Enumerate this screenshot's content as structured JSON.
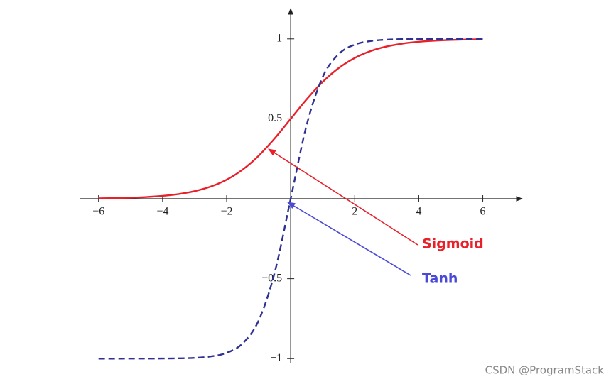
{
  "chart_data": {
    "type": "line",
    "x": [
      -6,
      -5.5,
      -5,
      -4.5,
      -4,
      -3.5,
      -3,
      -2.5,
      -2,
      -1.5,
      -1,
      -0.5,
      0,
      0.5,
      1,
      1.5,
      2,
      2.5,
      3,
      3.5,
      4,
      4.5,
      5,
      5.5,
      6
    ],
    "series": [
      {
        "name": "Sigmoid",
        "color": "#e8202a",
        "label_color": "#e8202a",
        "dashed": false,
        "values": [
          0.0025,
          0.0041,
          0.0067,
          0.011,
          0.018,
          0.0293,
          0.0474,
          0.0759,
          0.1192,
          0.1824,
          0.2689,
          0.3775,
          0.5,
          0.6225,
          0.7311,
          0.8176,
          0.8808,
          0.9241,
          0.9526,
          0.9707,
          0.982,
          0.989,
          0.9933,
          0.9959,
          0.9975
        ]
      },
      {
        "name": "Tanh",
        "color": "#2e3192",
        "label_color": "#4a4ad6",
        "dashed": true,
        "values": [
          -1.0,
          -1.0,
          -0.9999,
          -0.9998,
          -0.9993,
          -0.9982,
          -0.9951,
          -0.9866,
          -0.964,
          -0.9051,
          -0.7616,
          -0.4621,
          0,
          0.4621,
          0.7616,
          0.9051,
          0.964,
          0.9866,
          0.9951,
          0.9982,
          0.9993,
          0.9998,
          0.9999,
          1.0,
          1.0
        ]
      }
    ],
    "xlim": [
      -6.57,
      7.23
    ],
    "ylim": [
      -1.03,
      1.19
    ],
    "xticks": [
      {
        "value": -6,
        "label": "−6"
      },
      {
        "value": -4,
        "label": "−4"
      },
      {
        "value": -2,
        "label": "−2"
      },
      2,
      4,
      6
    ],
    "yticks": [
      {
        "value": -1,
        "label": "−1"
      },
      {
        "value": -0.5,
        "label": "−0.5"
      },
      0.5,
      1
    ],
    "watermark": "CSDN @ProgramStack"
  }
}
